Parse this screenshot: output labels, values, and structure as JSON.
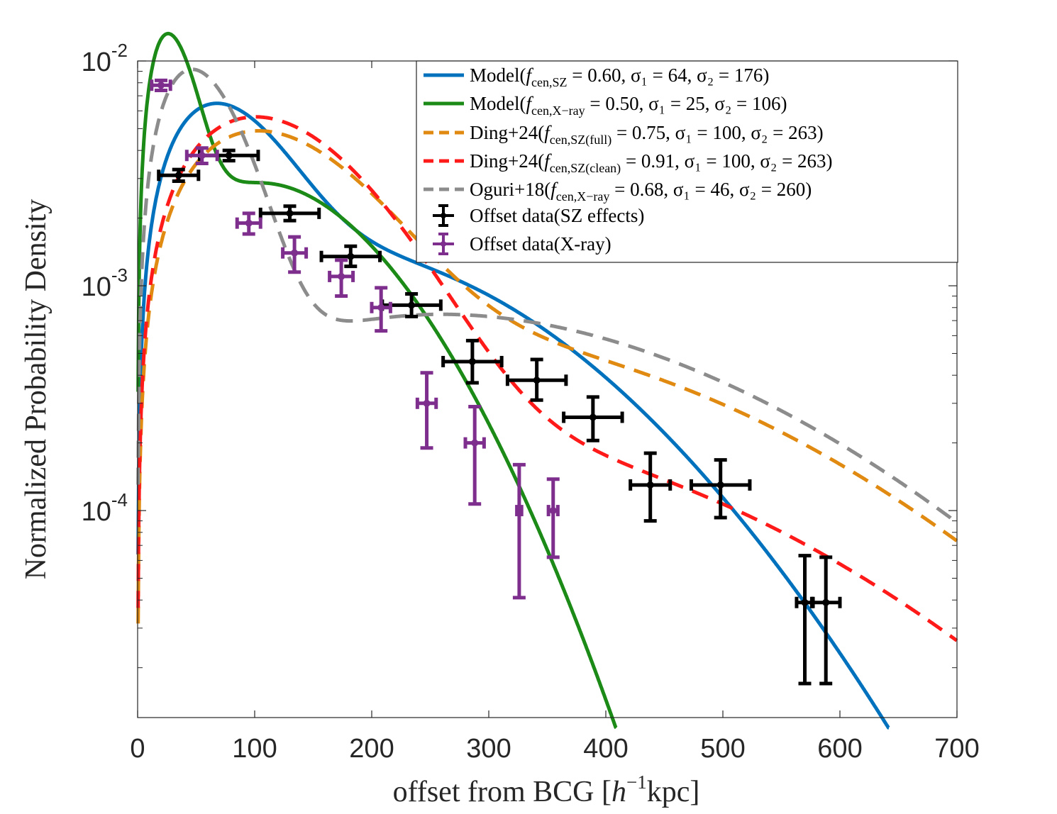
{
  "chart_data": {
    "type": "line",
    "xlabel": "offset from BCG [h⁻¹kpc]",
    "ylabel": "Normalized Probability Density",
    "xlim": [
      0,
      700
    ],
    "ylim": [
      1.2e-05,
      0.01
    ],
    "yscale": "log",
    "x_ticks": [
      0,
      100,
      200,
      300,
      400,
      500,
      600,
      700
    ],
    "y_ticks": [
      {
        "value": 0.0001,
        "base": "10",
        "exp": "-4"
      },
      {
        "value": 0.001,
        "base": "10",
        "exp": "-3"
      },
      {
        "value": 0.01,
        "base": "10",
        "exp": "-2"
      }
    ],
    "grid": false,
    "legend_position": "top-right",
    "colors": {
      "model_sz": "#0072BD",
      "model_xray": "#1B8A16",
      "ding_full": "#E08A12",
      "ding_clean": "#FF1A1A",
      "oguri": "#8C8C8C",
      "data_sz": "#000000",
      "data_xray": "#7E2F8E"
    },
    "series": [
      {
        "name": "Model(f_cen,SZ = 0.60, σ1 = 64, σ2 = 176)",
        "legend": {
          "prefix": "Model(",
          "f": "f",
          "sub": "cen,SZ",
          "rest": " = 0.60, σ₁ = 64, σ₂ = 176)"
        },
        "color_key": "model_sz",
        "dash": "solid",
        "params": {
          "fcen": 0.6,
          "sigma1": 64,
          "sigma2": 176
        }
      },
      {
        "name": "Model(f_cen,X−ray = 0.50, σ1 = 25, σ2 = 106)",
        "legend": {
          "prefix": "Model(",
          "f": "f",
          "sub": "cen,X−ray",
          "rest": " = 0.50, σ₁ = 25, σ₂ = 106)"
        },
        "color_key": "model_xray",
        "dash": "solid",
        "params": {
          "fcen": 0.5,
          "sigma1": 25,
          "sigma2": 106
        }
      },
      {
        "name": "Ding+24(f_cen,SZ(full) = 0.75, σ1 = 100, σ2 = 263)",
        "legend": {
          "prefix": "Ding+24(",
          "f": "f",
          "sub": "cen,SZ(full)",
          "rest": " = 0.75, σ₁ = 100, σ₂ = 263)"
        },
        "color_key": "ding_full",
        "dash": "dashed",
        "params": {
          "fcen": 0.75,
          "sigma1": 100,
          "sigma2": 263
        }
      },
      {
        "name": "Ding+24(f_cen,SZ(clean) = 0.91, σ1 = 100, σ2 = 263)",
        "legend": {
          "prefix": "Ding+24(",
          "f": "f",
          "sub": "cen,SZ(clean)",
          "rest": " = 0.91, σ₁ = 100, σ₂ = 263)"
        },
        "color_key": "ding_clean",
        "dash": "dashed",
        "params": {
          "fcen": 0.91,
          "sigma1": 100,
          "sigma2": 263
        }
      },
      {
        "name": "Oguri+18(f_cen,X−ray = 0.68, σ1 = 46, σ2 = 260)",
        "legend": {
          "prefix": "Oguri+18(",
          "f": "f",
          "sub": "cen,X−ray",
          "rest": " = 0.68, σ₁ = 46, σ₂ = 260)"
        },
        "color_key": "oguri",
        "dash": "dashed",
        "params": {
          "fcen": 0.68,
          "sigma1": 46,
          "sigma2": 260
        }
      }
    ],
    "data_series": [
      {
        "name": "Offset data(SZ effects)",
        "color_key": "data_sz",
        "points": [
          {
            "x": 35,
            "y": 0.0031,
            "xerr": 17,
            "ylo": 0.00292,
            "yhi": 0.00329
          },
          {
            "x": 78,
            "y": 0.0038,
            "xerr": 25,
            "ylo": 0.0036,
            "yhi": 0.004
          },
          {
            "x": 130,
            "y": 0.0021,
            "xerr": 25,
            "ylo": 0.00195,
            "yhi": 0.00226
          },
          {
            "x": 182,
            "y": 0.00135,
            "xerr": 25,
            "ylo": 0.00122,
            "yhi": 0.0015
          },
          {
            "x": 234,
            "y": 0.00082,
            "xerr": 25,
            "ylo": 0.00073,
            "yhi": 0.00092
          },
          {
            "x": 286,
            "y": 0.00046,
            "xerr": 25,
            "ylo": 0.00037,
            "yhi": 0.00057
          },
          {
            "x": 341,
            "y": 0.00038,
            "xerr": 25,
            "ylo": 0.00031,
            "yhi": 0.00047
          },
          {
            "x": 389,
            "y": 0.00026,
            "xerr": 25,
            "ylo": 0.000205,
            "yhi": 0.00032
          },
          {
            "x": 438,
            "y": 0.00013,
            "xerr": 17,
            "ylo": 9e-05,
            "yhi": 0.00018
          },
          {
            "x": 498,
            "y": 0.00013,
            "xerr": 25,
            "ylo": 9.3e-05,
            "yhi": 0.000168
          },
          {
            "x": 570,
            "y": 3.9e-05,
            "xerr": 7,
            "ylo": 1.7e-05,
            "yhi": 6.3e-05
          },
          {
            "x": 588,
            "y": 3.9e-05,
            "xerr": 12,
            "ylo": 1.7e-05,
            "yhi": 6.2e-05
          }
        ]
      },
      {
        "name": "Offset data(X-ray)",
        "color_key": "data_xray",
        "points": [
          {
            "x": 20,
            "y": 0.0078,
            "xerr": 8,
            "ylo": 0.0074,
            "yhi": 0.0082
          },
          {
            "x": 55,
            "y": 0.0038,
            "xerr": 13,
            "ylo": 0.0035,
            "yhi": 0.0041
          },
          {
            "x": 95,
            "y": 0.0019,
            "xerr": 10,
            "ylo": 0.0017,
            "yhi": 0.0021
          },
          {
            "x": 134,
            "y": 0.0014,
            "xerr": 10,
            "ylo": 0.00115,
            "yhi": 0.00165
          },
          {
            "x": 174,
            "y": 0.0011,
            "xerr": 10,
            "ylo": 0.0009,
            "yhi": 0.0013
          },
          {
            "x": 208,
            "y": 0.0008,
            "xerr": 8,
            "ylo": 0.00063,
            "yhi": 0.00098
          },
          {
            "x": 247,
            "y": 0.0003,
            "xerr": 8,
            "ylo": 0.00019,
            "yhi": 0.00041
          },
          {
            "x": 288,
            "y": 0.0002,
            "xerr": 8,
            "ylo": 0.000107,
            "yhi": 0.00029
          },
          {
            "x": 326,
            "y": 0.0001,
            "xerr": 2,
            "ylo": 4.1e-05,
            "yhi": 0.00016
          },
          {
            "x": 355,
            "y": 0.0001,
            "xerr": 4,
            "ylo": 6.2e-05,
            "yhi": 0.000138
          }
        ]
      }
    ]
  }
}
